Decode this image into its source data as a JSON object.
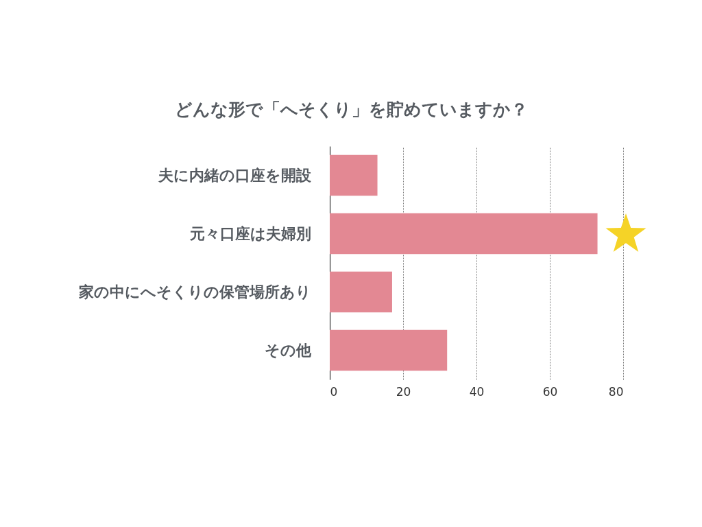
{
  "chart_data": {
    "type": "bar",
    "orientation": "horizontal",
    "title": "どんな形で「へそくり」を貯めていますか？",
    "categories": [
      "夫に内緒の口座を開設",
      "元々口座は夫婦別",
      "家の中にへそくりの保管場所あり",
      "その他"
    ],
    "values": [
      13,
      73,
      17,
      32
    ],
    "color": "#e38893",
    "xlim": [
      0,
      80
    ],
    "xticks": [
      0,
      20,
      40,
      60,
      80
    ],
    "grid": "x"
  }
}
